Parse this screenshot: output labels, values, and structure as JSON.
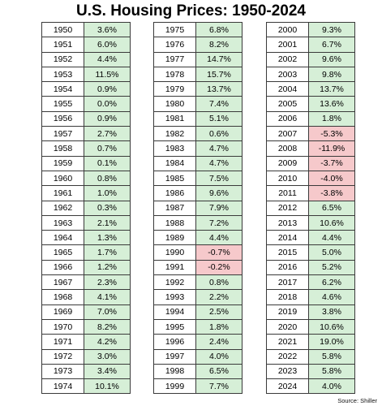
{
  "title": "U.S. Housing Prices: 1950-2024",
  "source": "Source: Shiller",
  "colors": {
    "positive_fill": "#d6efd7",
    "negative_fill": "#f6c9cb",
    "border": "#3a3a3a"
  },
  "chart_data": {
    "type": "table",
    "title": "U.S. Housing Prices: 1950-2024",
    "columns": [
      {
        "years": [
          "1950",
          "1951",
          "1952",
          "1953",
          "1954",
          "1955",
          "1956",
          "1957",
          "1958",
          "1959",
          "1960",
          "1961",
          "1962",
          "1963",
          "1964",
          "1965",
          "1966",
          "1967",
          "1968",
          "1969",
          "1970",
          "1971",
          "1972",
          "1973",
          "1974"
        ],
        "values": [
          "3.6%",
          "6.0%",
          "4.4%",
          "11.5%",
          "0.9%",
          "0.0%",
          "0.9%",
          "2.7%",
          "0.7%",
          "0.1%",
          "0.8%",
          "1.0%",
          "0.3%",
          "2.1%",
          "1.3%",
          "1.7%",
          "1.2%",
          "2.3%",
          "4.1%",
          "7.0%",
          "8.2%",
          "4.2%",
          "3.0%",
          "3.4%",
          "10.1%"
        ]
      },
      {
        "years": [
          "1975",
          "1976",
          "1977",
          "1978",
          "1979",
          "1980",
          "1981",
          "1982",
          "1983",
          "1984",
          "1985",
          "1986",
          "1987",
          "1988",
          "1989",
          "1990",
          "1991",
          "1992",
          "1993",
          "1994",
          "1995",
          "1996",
          "1997",
          "1998",
          "1999"
        ],
        "values": [
          "6.8%",
          "8.2%",
          "14.7%",
          "15.7%",
          "13.7%",
          "7.4%",
          "5.1%",
          "0.6%",
          "4.7%",
          "4.7%",
          "7.5%",
          "9.6%",
          "7.9%",
          "7.2%",
          "4.4%",
          "-0.7%",
          "-0.2%",
          "0.8%",
          "2.2%",
          "2.5%",
          "1.8%",
          "2.4%",
          "4.0%",
          "6.5%",
          "7.7%"
        ]
      },
      {
        "years": [
          "2000",
          "2001",
          "2002",
          "2003",
          "2004",
          "2005",
          "2006",
          "2007",
          "2008",
          "2009",
          "2010",
          "2011",
          "2012",
          "2013",
          "2014",
          "2015",
          "2016",
          "2017",
          "2018",
          "2019",
          "2020",
          "2021",
          "2022",
          "2023",
          "2024"
        ],
        "values": [
          "9.3%",
          "6.7%",
          "9.6%",
          "9.8%",
          "13.7%",
          "13.6%",
          "1.8%",
          "-5.3%",
          "-11.9%",
          "-3.7%",
          "-4.0%",
          "-3.8%",
          "6.5%",
          "10.6%",
          "4.4%",
          "5.0%",
          "5.2%",
          "6.2%",
          "4.6%",
          "3.8%",
          "10.6%",
          "19.0%",
          "5.8%",
          "5.8%",
          "4.0%"
        ]
      }
    ]
  }
}
